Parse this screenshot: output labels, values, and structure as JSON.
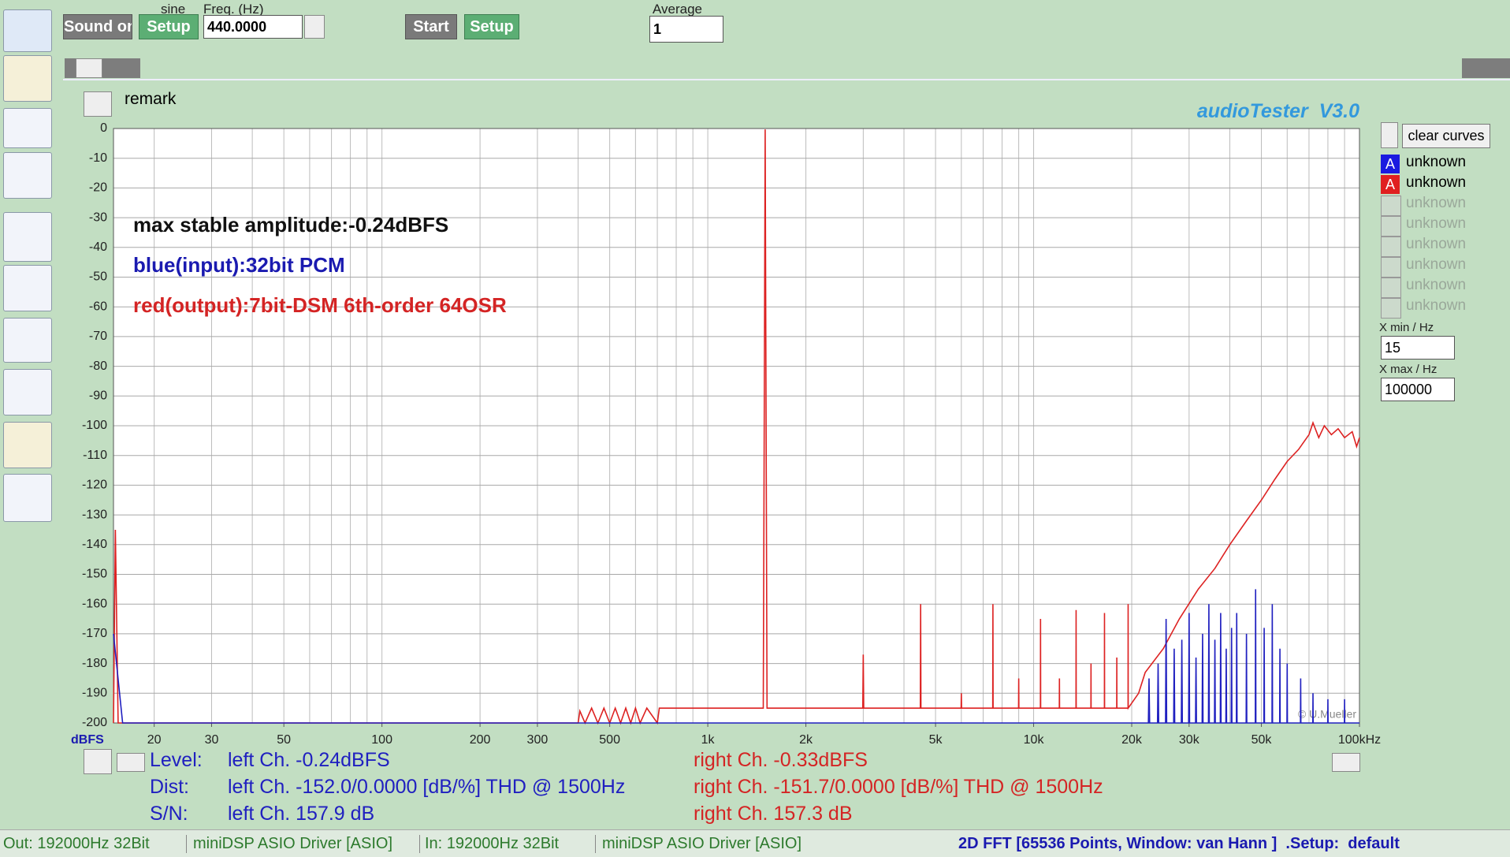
{
  "toolbar": {
    "sound_button": "Sound on",
    "sine_label": "sine",
    "setup_button_1": "Setup",
    "freq_label": "Freq. (Hz)",
    "freq_value": "440.0000",
    "start_button": "Start",
    "setup_button_2": "Setup",
    "average_label": "Average",
    "average_value": "1"
  },
  "remark": "remark",
  "brand": "audioTester  V3.0",
  "right_panel": {
    "clear_curves": "clear curves",
    "curve_badges": [
      "A",
      "A"
    ],
    "empty_slots": [
      "unknown",
      "unknown",
      "unknown",
      "unknown",
      "unknown",
      "unknown"
    ],
    "xmin_label": "X min / Hz",
    "xmin_value": "15",
    "xmax_label": "X max / Hz",
    "xmax_value": "100000"
  },
  "chart_data": {
    "type": "line",
    "xscale": "log",
    "ylabel": "dBFS",
    "credit": "© U.Mueller",
    "annotations": [
      {
        "text": "max stable amplitude:-0.24dBFS",
        "color": "#111111"
      },
      {
        "text": "blue(input):32bit PCM",
        "color": "#1a1ab0"
      },
      {
        "text": "red(output):7bit-DSM 6th-order 64OSR",
        "color": "#d42424"
      }
    ],
    "xlim": [
      15,
      100000
    ],
    "ylim": [
      -200,
      0
    ],
    "xticks": [
      20,
      30,
      50,
      100,
      200,
      300,
      500,
      {
        "value": 1000,
        "label": "1k"
      },
      {
        "value": 2000,
        "label": "2k"
      },
      {
        "value": 5000,
        "label": "5k"
      },
      {
        "value": 10000,
        "label": "10k"
      },
      {
        "value": 20000,
        "label": "20k"
      },
      {
        "value": 30000,
        "label": "30k"
      },
      {
        "value": 50000,
        "label": "50k"
      },
      {
        "value": 100000,
        "label": "100kHz"
      }
    ],
    "xgrid": [
      20,
      30,
      40,
      50,
      60,
      70,
      80,
      90,
      100,
      200,
      300,
      400,
      500,
      600,
      700,
      800,
      900,
      1000,
      2000,
      3000,
      4000,
      5000,
      6000,
      7000,
      8000,
      9000,
      10000,
      20000,
      30000,
      40000,
      50000,
      60000,
      70000,
      80000,
      90000
    ],
    "yticks": [
      0,
      -10,
      -20,
      -30,
      -40,
      -50,
      -60,
      -70,
      -80,
      -90,
      -100,
      -110,
      -120,
      -130,
      -140,
      -150,
      -160,
      -170,
      -180,
      -190,
      -200
    ],
    "grid": true,
    "series": [
      {
        "name": "unknown",
        "color": "#dd2222",
        "x": [
          15,
          15.2,
          15.5,
          400,
          405,
          420,
          440,
          460,
          480,
          500,
          520,
          540,
          560,
          580,
          600,
          620,
          650,
          700,
          710,
          1480,
          1490,
          1500,
          1510,
          1520,
          2990,
          3000,
          3010,
          4490,
          4500,
          4510,
          5990,
          6000,
          6010,
          7490,
          7500,
          7510,
          8990,
          9000,
          9010,
          10490,
          10500,
          10510,
          11990,
          12000,
          12010,
          13490,
          13500,
          13510,
          14990,
          15000,
          15010,
          16490,
          16500,
          16510,
          17990,
          18000,
          18010,
          19490,
          19500,
          19510,
          21000,
          22000,
          25000,
          28000,
          32000,
          36000,
          40000,
          45000,
          50000,
          55000,
          60000,
          65000,
          70000,
          72000,
          75000,
          78000,
          82000,
          86000,
          90000,
          95000,
          98000,
          100000
        ],
        "values": [
          -200,
          -135,
          -200,
          -200,
          -196,
          -200,
          -195,
          -200,
          -195,
          -200,
          -195,
          -200,
          -195,
          -200,
          -195,
          -200,
          -195,
          -200,
          -195,
          -195,
          -100,
          -0.3,
          -100,
          -195,
          -195,
          -177,
          -195,
          -195,
          -160,
          -195,
          -195,
          -190,
          -195,
          -195,
          -160,
          -195,
          -195,
          -185,
          -195,
          -195,
          -165,
          -195,
          -195,
          -185,
          -195,
          -195,
          -162,
          -195,
          -195,
          -180,
          -195,
          -195,
          -163,
          -195,
          -195,
          -178,
          -195,
          -195,
          -160,
          -195,
          -190,
          -183,
          -175,
          -165,
          -155,
          -148,
          -140,
          -132,
          -125,
          -118,
          -112,
          -108,
          -103,
          -99,
          -104,
          -100,
          -103,
          -101,
          -104,
          -102,
          -107,
          -104
        ]
      },
      {
        "name": "unknown",
        "color": "#2020c0",
        "x": [
          15,
          16,
          22500,
          22600,
          22700,
          24000,
          24100,
          24200,
          25400,
          25500,
          25600,
          26900,
          27000,
          27100,
          28400,
          28500,
          28600,
          29900,
          30000,
          30100,
          31400,
          31500,
          31600,
          32900,
          33000,
          33100,
          34400,
          34500,
          34600,
          35900,
          36000,
          36100,
          37400,
          37500,
          37600,
          38900,
          39000,
          39100,
          40400,
          40500,
          40600,
          41900,
          42000,
          42100,
          44900,
          45000,
          45100,
          47900,
          48000,
          48100,
          50900,
          51000,
          51100,
          53900,
          54000,
          54100,
          56900,
          57000,
          57100,
          59900,
          60000,
          60100,
          65900,
          66000,
          66100,
          71900,
          72000,
          72100,
          79900,
          80000,
          80100,
          89900,
          90000,
          90100,
          100000
        ],
        "values": [
          -170,
          -200,
          -200,
          -185,
          -200,
          -200,
          -180,
          -200,
          -200,
          -165,
          -200,
          -200,
          -175,
          -200,
          -200,
          -172,
          -200,
          -200,
          -163,
          -200,
          -200,
          -178,
          -200,
          -200,
          -170,
          -200,
          -200,
          -160,
          -200,
          -200,
          -172,
          -200,
          -200,
          -163,
          -200,
          -200,
          -175,
          -200,
          -200,
          -168,
          -200,
          -200,
          -163,
          -200,
          -200,
          -170,
          -200,
          -200,
          -155,
          -200,
          -200,
          -168,
          -200,
          -200,
          -160,
          -200,
          -200,
          -175,
          -200,
          -200,
          -180,
          -200,
          -200,
          -185,
          -200,
          -200,
          -190,
          -200,
          -200,
          -192,
          -200,
          -200,
          -192,
          -200,
          -200
        ]
      }
    ]
  },
  "readout": {
    "level_label": "Level:",
    "level_left": "left Ch. -0.24dBFS",
    "level_right": "right Ch. -0.33dBFS",
    "dist_label": "Dist:",
    "dist_left": "left Ch. -152.0/0.0000 [dB/%] THD @ 1500Hz",
    "dist_right": "right Ch. -151.7/0.0000 [dB/%] THD @ 1500Hz",
    "sn_label": "S/N:",
    "sn_left": "left Ch. 157.9 dB",
    "sn_right": "right Ch. 157.3 dB"
  },
  "status": {
    "out": "Out: 192000Hz 32Bit",
    "out_driver": "miniDSP ASIO Driver [ASIO]",
    "in": "In: 192000Hz 32Bit",
    "in_driver": "miniDSP ASIO Driver [ASIO]",
    "mode": "2D FFT [65536 Points, Window: van Hann ]  .Setup:  default"
  }
}
